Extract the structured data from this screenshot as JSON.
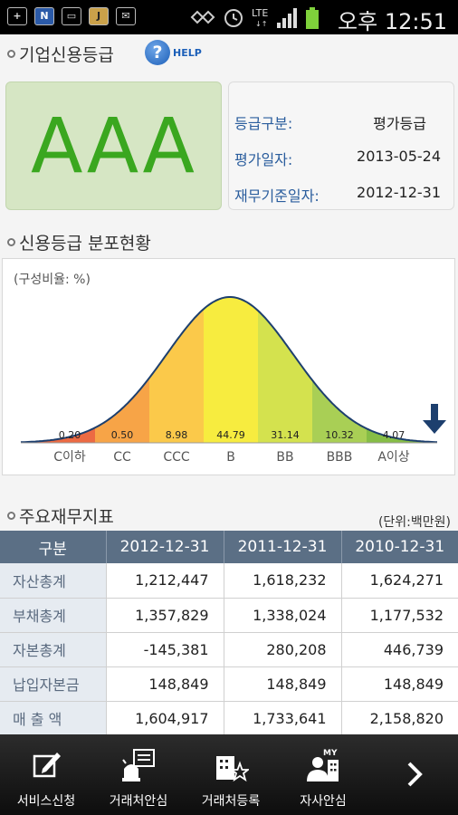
{
  "status_bar": {
    "left_icons": [
      "plus",
      "N",
      "image",
      "J",
      "mail"
    ],
    "network": "LTE",
    "time": "오후 12:51"
  },
  "header": {
    "title": "기업신용등급",
    "help_label": "HELP"
  },
  "grade": {
    "value": "AAA",
    "rows": [
      {
        "label": "등급구분:",
        "value": "평가등급"
      },
      {
        "label": "평가일자:",
        "value": "2013-05-24"
      },
      {
        "label": "재무기준일자:",
        "value": "2012-12-31"
      }
    ]
  },
  "distribution": {
    "title": "신용등급 분포현황",
    "unit": "(구성비율: %)"
  },
  "chart_data": {
    "type": "area",
    "categories": [
      "C이하",
      "CC",
      "CCC",
      "B",
      "BB",
      "BBB",
      "A이상"
    ],
    "values": [
      0.2,
      0.5,
      8.98,
      44.79,
      31.14,
      10.32,
      4.07
    ],
    "labels": [
      "0.20",
      "0.50",
      "8.98",
      "44.79",
      "31.14",
      "10.32",
      "4.07"
    ],
    "colors": [
      "#ec6a43",
      "#f7a447",
      "#fbc94a",
      "#f7ec3f",
      "#d4e24e",
      "#a9cf55",
      "#86bd46"
    ],
    "indicator_category": "A이상",
    "title": "",
    "xlabel": "",
    "ylabel": ""
  },
  "financials": {
    "title": "주요재무지표",
    "unit": "(단위:백만원)",
    "columns": [
      "구분",
      "2012-12-31",
      "2011-12-31",
      "2010-12-31"
    ],
    "rows": [
      {
        "label": "자산총계",
        "values": [
          "1,212,447",
          "1,618,232",
          "1,624,271"
        ]
      },
      {
        "label": "부채총계",
        "values": [
          "1,357,829",
          "1,338,024",
          "1,177,532"
        ]
      },
      {
        "label": "자본총계",
        "values": [
          "-145,381",
          "280,208",
          "446,739"
        ]
      },
      {
        "label": "납입자본금",
        "values": [
          "148,849",
          "148,849",
          "148,849"
        ]
      },
      {
        "label": "매 출 액",
        "values": [
          "1,604,917",
          "1,733,641",
          "2,158,820"
        ]
      }
    ]
  },
  "bottom_nav": {
    "items": [
      {
        "label": "서비스신청",
        "icon": "pencil-icon"
      },
      {
        "label": "거래처안심",
        "icon": "alarm-icon"
      },
      {
        "label": "거래처등록",
        "icon": "building-star-icon"
      },
      {
        "label": "자사안심",
        "icon": "my-company-icon"
      }
    ],
    "next_icon": "chevron-right-icon"
  }
}
